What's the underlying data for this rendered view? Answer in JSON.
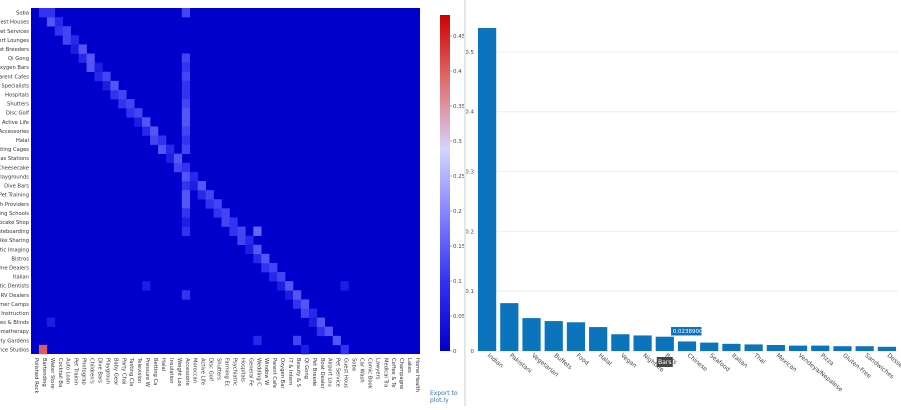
{
  "chart_data": [
    {
      "type": "heatmap",
      "title": "",
      "xlabel": "",
      "ylabel": "",
      "y_categories": [
        "Soba",
        "Guest Houses",
        "Pet Services",
        "Airport Lounges",
        "Pet Breeders",
        "Qi Gong",
        "Oxygen Bars",
        "Parent Cafes",
        "Specialists",
        "Hospitals",
        "Shutters",
        "Disc Golf",
        "Active Life",
        "Accessories",
        "Halal",
        "Betting Cages",
        "Gas Stations",
        "Cheesecake",
        "Playgrounds",
        "Dive Bars",
        "Pet Training",
        "Health Providers",
        "Driving Schools",
        "Cupcake Shop",
        "Skateboarding",
        "Bike Sharing",
        "Diagnostic Imaging",
        "Bistros",
        "Home Dealers",
        "Italian",
        "Cosmetic Dentists",
        "RV Dealers",
        "Summer Camps",
        "Instruction",
        "Shades & Blinds",
        "Aromatherapy",
        "Community Gardens",
        "Dance Studios"
      ],
      "x_categories": [
        "Polished Rock",
        "Bartending",
        "Water Store",
        "Cocktail Ba",
        "Auto Loan",
        "Pet Trainin",
        "Photograp",
        "Children's",
        "Dive Bars",
        "Playgroun",
        "Baby Gear",
        "Party Chai",
        "Tasting Cla",
        "Television",
        "Pressure W",
        "Betting Ca",
        "Halal",
        "Insulation",
        "Weight Los",
        "Accessorie",
        "Moroccan",
        "Active Life",
        "Disc Golf",
        "Shutters",
        "Farming Ec",
        "Psychiatric",
        "Hospitals",
        "General Fe",
        "Wedding C",
        "Window W",
        "Parent Cafe",
        "Oxygen Bar",
        "IT & Intern",
        "Beauty & S",
        "Qi Gong",
        "Pet Breede",
        "Boat Dealer",
        "Airport Lou",
        "Pet Service",
        "Guest Hous",
        "Soba",
        "Car Wash",
        "Comic Book",
        "Lawyers",
        "Medical Tra",
        "Coffee & Te",
        "Champagne",
        "Lakes",
        "Home Health"
      ],
      "cells": [
        [
          37,
          1,
          0.4
        ],
        [
          37,
          34,
          0.06
        ],
        [
          37,
          39,
          0.1
        ],
        [
          36,
          28,
          0.08
        ],
        [
          36,
          33,
          0.12
        ],
        [
          36,
          38,
          0.14
        ],
        [
          35,
          36,
          0.1
        ],
        [
          35,
          37,
          0.14
        ],
        [
          34,
          35,
          0.06
        ],
        [
          34,
          36,
          0.14
        ],
        [
          33,
          34,
          0.12
        ],
        [
          33,
          35,
          0.08
        ],
        [
          32,
          33,
          0.1
        ],
        [
          32,
          34,
          0.14
        ],
        [
          31,
          19,
          0.1
        ],
        [
          31,
          32,
          0.06
        ],
        [
          31,
          33,
          0.14
        ],
        [
          30,
          31,
          0.06
        ],
        [
          30,
          32,
          0.14
        ],
        [
          30,
          39,
          0.06
        ],
        [
          29,
          30,
          0.08
        ],
        [
          29,
          31,
          0.12
        ],
        [
          28,
          29,
          0.1
        ],
        [
          28,
          30,
          0.12
        ],
        [
          27,
          28,
          0.08
        ],
        [
          27,
          29,
          0.14
        ],
        [
          26,
          27,
          0.06
        ],
        [
          26,
          28,
          0.14
        ],
        [
          25,
          26,
          0.12
        ],
        [
          25,
          27,
          0.08
        ],
        [
          24,
          19,
          0.1
        ],
        [
          24,
          25,
          0.1
        ],
        [
          24,
          26,
          0.12
        ],
        [
          23,
          19,
          0.06
        ],
        [
          23,
          24,
          0.12
        ],
        [
          23,
          25,
          0.1
        ],
        [
          22,
          23,
          0.1
        ],
        [
          22,
          24,
          0.12
        ],
        [
          21,
          22,
          0.1
        ],
        [
          21,
          23,
          0.12
        ],
        [
          20,
          21,
          0.08
        ],
        [
          20,
          22,
          0.12
        ],
        [
          19,
          19,
          0.1
        ],
        [
          19,
          20,
          0.06
        ],
        [
          19,
          21,
          0.14
        ],
        [
          18,
          19,
          0.14
        ],
        [
          18,
          20,
          0.08
        ],
        [
          17,
          18,
          0.12
        ],
        [
          17,
          19,
          0.1
        ],
        [
          16,
          17,
          0.06
        ],
        [
          16,
          18,
          0.14
        ],
        [
          15,
          16,
          0.14
        ],
        [
          15,
          17,
          0.08
        ],
        [
          14,
          15,
          0.12
        ],
        [
          14,
          16,
          0.1
        ],
        [
          13,
          14,
          0.08
        ],
        [
          13,
          15,
          0.14
        ],
        [
          12,
          13,
          0.06
        ],
        [
          12,
          14,
          0.14
        ],
        [
          11,
          12,
          0.1
        ],
        [
          11,
          13,
          0.12
        ],
        [
          10,
          11,
          0.1
        ],
        [
          10,
          12,
          0.12
        ],
        [
          9,
          10,
          0.1
        ],
        [
          9,
          11,
          0.12
        ],
        [
          8,
          9,
          0.06
        ],
        [
          8,
          10,
          0.14
        ],
        [
          7,
          8,
          0.08
        ],
        [
          7,
          9,
          0.12
        ],
        [
          6,
          7,
          0.14
        ],
        [
          6,
          8,
          0.06
        ],
        [
          5,
          6,
          0.08
        ],
        [
          5,
          7,
          0.14
        ],
        [
          4,
          5,
          0.06
        ],
        [
          4,
          6,
          0.14
        ],
        [
          3,
          4,
          0.12
        ],
        [
          3,
          5,
          0.08
        ],
        [
          2,
          3,
          0.1
        ],
        [
          2,
          4,
          0.12
        ],
        [
          1,
          2,
          0.14
        ],
        [
          1,
          3,
          0.08
        ],
        [
          0,
          1,
          0.1
        ],
        [
          0,
          2,
          0.1
        ],
        [
          0,
          19,
          0.12
        ],
        [
          5,
          19,
          0.12
        ],
        [
          6,
          19,
          0.1
        ],
        [
          7,
          19,
          0.12
        ],
        [
          8,
          19,
          0.1
        ],
        [
          9,
          19,
          0.1
        ],
        [
          10,
          19,
          0.12
        ],
        [
          11,
          19,
          0.14
        ],
        [
          12,
          19,
          0.14
        ],
        [
          13,
          19,
          0.12
        ],
        [
          14,
          19,
          0.1
        ],
        [
          15,
          19,
          0.12
        ],
        [
          20,
          19,
          0.14
        ],
        [
          21,
          19,
          0.14
        ],
        [
          22,
          19,
          0.1
        ],
        [
          24,
          28,
          0.16
        ],
        [
          30,
          14,
          0.06
        ],
        [
          34,
          2,
          0.06
        ]
      ],
      "colorscale": [
        "#0000cc",
        "#3030ee",
        "#8080ff",
        "#d4d4ff",
        "#e07070",
        "#cc0000"
      ],
      "colorbar_ticks": [
        0,
        0.05,
        0.1,
        0.15,
        0.2,
        0.25,
        0.3,
        0.35,
        0.4,
        0.45
      ],
      "zmin": 0,
      "zmax": 0.48,
      "export_label": "Export to plot.ly"
    },
    {
      "type": "bar",
      "title": "",
      "xlabel": "",
      "ylabel": "",
      "categories": [
        "Indian",
        "Pakistani",
        "Vegetarian",
        "Buffets",
        "Food",
        "Halal",
        "Vegan",
        "Nightlife",
        "Bars",
        "Chinese",
        "Seafood",
        "Italian",
        "Thai",
        "Mexican",
        "Vendeya/Nepalese",
        "Pizza",
        "Gluten-Free",
        "Sandwiches",
        "Desse"
      ],
      "values": [
        0.54,
        0.08,
        0.055,
        0.05,
        0.048,
        0.04,
        0.028,
        0.026,
        0.02389004,
        0.016,
        0.014,
        0.012,
        0.011,
        0.01,
        0.009,
        0.009,
        0.008,
        0.008,
        0.007
      ],
      "ylim": [
        0,
        0.57
      ],
      "yticks": [
        0,
        0.1,
        0.2,
        0.3,
        0.4,
        0.5
      ],
      "bar_color": "#0b74bd",
      "grid": true,
      "hover": {
        "category": "Bars",
        "value_label": "0.02389004",
        "category_label": "Bars"
      }
    }
  ]
}
